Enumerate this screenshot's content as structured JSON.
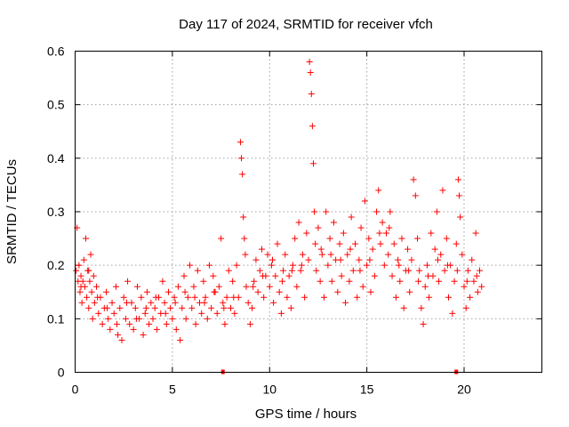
{
  "chart_data": {
    "type": "scatter",
    "title": "Day 117 of 2024, SRMTID for receiver vfch",
    "xlabel": "GPS time / hours",
    "ylabel": "SRMTID / TECUs",
    "xlim": [
      0,
      24
    ],
    "ylim": [
      0,
      0.6
    ],
    "xticks": [
      0,
      5,
      10,
      15,
      20
    ],
    "yticks": [
      0,
      0.1,
      0.2,
      0.3,
      0.4,
      0.5,
      0.6
    ],
    "xtick_labels": [
      "0",
      "5",
      "10",
      "15",
      "20"
    ],
    "ytick_labels": [
      "0",
      "0.1",
      "0.2",
      "0.3",
      "0.4",
      "0.5",
      "0.6"
    ],
    "grid": true,
    "marker": "+",
    "color": "#ff0000",
    "series": [
      {
        "name": "SRMTID",
        "points": [
          [
            0.05,
            0.19
          ],
          [
            0.1,
            0.27
          ],
          [
            0.15,
            0.17
          ],
          [
            0.2,
            0.2
          ],
          [
            0.25,
            0.15
          ],
          [
            0.3,
            0.18
          ],
          [
            0.35,
            0.13
          ],
          [
            0.4,
            0.17
          ],
          [
            0.45,
            0.21
          ],
          [
            0.5,
            0.16
          ],
          [
            0.55,
            0.25
          ],
          [
            0.6,
            0.14
          ],
          [
            0.65,
            0.19
          ],
          [
            0.7,
            0.12
          ],
          [
            0.75,
            0.17
          ],
          [
            0.8,
            0.22
          ],
          [
            0.85,
            0.15
          ],
          [
            0.9,
            0.1
          ],
          [
            0.95,
            0.18
          ],
          [
            1.0,
            0.13
          ],
          [
            1.1,
            0.16
          ],
          [
            1.2,
            0.11
          ],
          [
            1.3,
            0.14
          ],
          [
            1.4,
            0.09
          ],
          [
            1.5,
            0.12
          ],
          [
            1.6,
            0.15
          ],
          [
            1.7,
            0.1
          ],
          [
            1.8,
            0.08
          ],
          [
            1.9,
            0.13
          ],
          [
            2.0,
            0.11
          ],
          [
            2.1,
            0.16
          ],
          [
            2.2,
            0.07
          ],
          [
            2.3,
            0.12
          ],
          [
            2.4,
            0.06
          ],
          [
            2.5,
            0.14
          ],
          [
            2.6,
            0.1
          ],
          [
            2.7,
            0.17
          ],
          [
            2.8,
            0.09
          ],
          [
            2.9,
            0.13
          ],
          [
            3.0,
            0.08
          ],
          [
            3.1,
            0.12
          ],
          [
            3.2,
            0.16
          ],
          [
            3.3,
            0.1
          ],
          [
            3.4,
            0.14
          ],
          [
            3.5,
            0.07
          ],
          [
            3.6,
            0.11
          ],
          [
            3.7,
            0.15
          ],
          [
            3.8,
            0.09
          ],
          [
            3.9,
            0.13
          ],
          [
            4.0,
            0.1
          ],
          [
            4.1,
            0.12
          ],
          [
            4.2,
            0.08
          ],
          [
            4.3,
            0.14
          ],
          [
            4.4,
            0.11
          ],
          [
            4.5,
            0.17
          ],
          [
            4.6,
            0.13
          ],
          [
            4.7,
            0.09
          ],
          [
            4.8,
            0.15
          ],
          [
            4.9,
            0.12
          ],
          [
            5.0,
            0.1
          ],
          [
            5.1,
            0.14
          ],
          [
            5.2,
            0.08
          ],
          [
            5.3,
            0.16
          ],
          [
            5.4,
            0.06
          ],
          [
            5.5,
            0.12
          ],
          [
            5.6,
            0.18
          ],
          [
            5.7,
            0.1
          ],
          [
            5.8,
            0.14
          ],
          [
            5.9,
            0.2
          ],
          [
            6.0,
            0.12
          ],
          [
            6.1,
            0.16
          ],
          [
            6.2,
            0.09
          ],
          [
            6.3,
            0.19
          ],
          [
            6.4,
            0.13
          ],
          [
            6.5,
            0.11
          ],
          [
            6.6,
            0.17
          ],
          [
            6.7,
            0.14
          ],
          [
            6.8,
            0.1
          ],
          [
            6.9,
            0.2
          ],
          [
            7.0,
            0.12
          ],
          [
            7.1,
            0.18
          ],
          [
            7.2,
            0.15
          ],
          [
            7.3,
            0.11
          ],
          [
            7.4,
            0.16
          ],
          [
            7.5,
            0.25
          ],
          [
            7.6,
            0.13
          ],
          [
            7.7,
            0.09
          ],
          [
            7.8,
            0.14
          ],
          [
            7.9,
            0.19
          ],
          [
            8.0,
            0.12
          ],
          [
            8.1,
            0.17
          ],
          [
            8.2,
            0.11
          ],
          [
            8.3,
            0.2
          ],
          [
            8.4,
            0.14
          ],
          [
            8.5,
            0.43
          ],
          [
            8.55,
            0.4
          ],
          [
            8.6,
            0.37
          ],
          [
            8.65,
            0.29
          ],
          [
            8.7,
            0.25
          ],
          [
            8.75,
            0.22
          ],
          [
            8.8,
            0.16
          ],
          [
            8.9,
            0.13
          ],
          [
            9.0,
            0.09
          ],
          [
            9.1,
            0.12
          ],
          [
            9.2,
            0.17
          ],
          [
            9.3,
            0.21
          ],
          [
            9.4,
            0.15
          ],
          [
            9.5,
            0.19
          ],
          [
            9.6,
            0.23
          ],
          [
            9.7,
            0.14
          ],
          [
            9.8,
            0.18
          ],
          [
            9.9,
            0.22
          ],
          [
            10.0,
            0.16
          ],
          [
            10.1,
            0.2
          ],
          [
            10.2,
            0.13
          ],
          [
            10.3,
            0.18
          ],
          [
            10.4,
            0.24
          ],
          [
            10.5,
            0.15
          ],
          [
            10.6,
            0.11
          ],
          [
            10.7,
            0.19
          ],
          [
            10.8,
            0.22
          ],
          [
            10.9,
            0.14
          ],
          [
            11.0,
            0.18
          ],
          [
            11.1,
            0.12
          ],
          [
            11.2,
            0.2
          ],
          [
            11.3,
            0.25
          ],
          [
            11.4,
            0.16
          ],
          [
            11.5,
            0.28
          ],
          [
            11.6,
            0.19
          ],
          [
            11.7,
            0.22
          ],
          [
            11.8,
            0.14
          ],
          [
            11.9,
            0.26
          ],
          [
            12.0,
            0.21
          ],
          [
            12.05,
            0.58
          ],
          [
            12.1,
            0.56
          ],
          [
            12.15,
            0.52
          ],
          [
            12.2,
            0.46
          ],
          [
            12.25,
            0.39
          ],
          [
            12.3,
            0.3
          ],
          [
            12.35,
            0.24
          ],
          [
            12.4,
            0.19
          ],
          [
            12.5,
            0.27
          ],
          [
            12.6,
            0.17
          ],
          [
            12.7,
            0.22
          ],
          [
            12.8,
            0.14
          ],
          [
            12.9,
            0.3
          ],
          [
            13.0,
            0.2
          ],
          [
            13.1,
            0.25
          ],
          [
            13.2,
            0.17
          ],
          [
            13.3,
            0.28
          ],
          [
            13.4,
            0.21
          ],
          [
            13.5,
            0.15
          ],
          [
            13.6,
            0.24
          ],
          [
            13.7,
            0.18
          ],
          [
            13.8,
            0.26
          ],
          [
            13.9,
            0.13
          ],
          [
            14.0,
            0.22
          ],
          [
            14.1,
            0.17
          ],
          [
            14.2,
            0.29
          ],
          [
            14.3,
            0.19
          ],
          [
            14.4,
            0.24
          ],
          [
            14.5,
            0.14
          ],
          [
            14.6,
            0.21
          ],
          [
            14.7,
            0.27
          ],
          [
            14.8,
            0.16
          ],
          [
            14.9,
            0.32
          ],
          [
            15.0,
            0.2
          ],
          [
            15.1,
            0.25
          ],
          [
            15.2,
            0.15
          ],
          [
            15.3,
            0.23
          ],
          [
            15.4,
            0.18
          ],
          [
            15.5,
            0.3
          ],
          [
            15.6,
            0.34
          ],
          [
            15.7,
            0.24
          ],
          [
            15.8,
            0.28
          ],
          [
            15.9,
            0.2
          ],
          [
            16.0,
            0.26
          ],
          [
            16.1,
            0.22
          ],
          [
            16.2,
            0.3
          ],
          [
            16.3,
            0.18
          ],
          [
            16.4,
            0.24
          ],
          [
            16.5,
            0.14
          ],
          [
            16.6,
            0.21
          ],
          [
            16.7,
            0.17
          ],
          [
            16.8,
            0.25
          ],
          [
            16.9,
            0.12
          ],
          [
            17.0,
            0.19
          ],
          [
            17.1,
            0.23
          ],
          [
            17.2,
            0.15
          ],
          [
            17.3,
            0.21
          ],
          [
            17.4,
            0.36
          ],
          [
            17.5,
            0.33
          ],
          [
            17.6,
            0.25
          ],
          [
            17.7,
            0.19
          ],
          [
            17.8,
            0.12
          ],
          [
            17.9,
            0.09
          ],
          [
            18.0,
            0.16
          ],
          [
            18.1,
            0.2
          ],
          [
            18.2,
            0.14
          ],
          [
            18.3,
            0.26
          ],
          [
            18.4,
            0.18
          ],
          [
            18.5,
            0.23
          ],
          [
            18.6,
            0.3
          ],
          [
            18.7,
            0.17
          ],
          [
            18.8,
            0.22
          ],
          [
            18.9,
            0.34
          ],
          [
            19.0,
            0.19
          ],
          [
            19.1,
            0.25
          ],
          [
            19.2,
            0.14
          ],
          [
            19.3,
            0.2
          ],
          [
            19.4,
            0.11
          ],
          [
            19.5,
            0.17
          ],
          [
            19.6,
            0.24
          ],
          [
            19.7,
            0.36
          ],
          [
            19.75,
            0.33
          ],
          [
            19.8,
            0.29
          ],
          [
            19.9,
            0.22
          ],
          [
            20.0,
            0.16
          ],
          [
            20.1,
            0.12
          ],
          [
            20.2,
            0.19
          ],
          [
            20.3,
            0.14
          ],
          [
            20.4,
            0.21
          ],
          [
            20.5,
            0.17
          ],
          [
            20.6,
            0.26
          ],
          [
            20.7,
            0.15
          ],
          [
            20.8,
            0.19
          ],
          [
            20.9,
            0.16
          ],
          [
            0.3,
            0.16
          ],
          [
            0.7,
            0.19
          ],
          [
            1.15,
            0.14
          ],
          [
            1.65,
            0.12
          ],
          [
            2.15,
            0.09
          ],
          [
            2.65,
            0.13
          ],
          [
            3.15,
            0.1
          ],
          [
            3.65,
            0.12
          ],
          [
            4.15,
            0.14
          ],
          [
            4.65,
            0.11
          ],
          [
            5.15,
            0.13
          ],
          [
            5.65,
            0.15
          ],
          [
            6.15,
            0.14
          ],
          [
            6.65,
            0.13
          ],
          [
            7.15,
            0.15
          ],
          [
            7.65,
            0.12
          ],
          [
            8.15,
            0.14
          ],
          [
            9.15,
            0.16
          ],
          [
            9.65,
            0.18
          ],
          [
            10.15,
            0.21
          ],
          [
            10.65,
            0.17
          ],
          [
            11.15,
            0.19
          ],
          [
            11.65,
            0.2
          ],
          [
            12.65,
            0.23
          ],
          [
            13.15,
            0.22
          ],
          [
            13.65,
            0.21
          ],
          [
            14.15,
            0.23
          ],
          [
            14.65,
            0.19
          ],
          [
            15.15,
            0.21
          ],
          [
            15.65,
            0.26
          ],
          [
            16.15,
            0.27
          ],
          [
            16.65,
            0.2
          ],
          [
            17.15,
            0.19
          ],
          [
            17.65,
            0.17
          ],
          [
            18.15,
            0.18
          ],
          [
            18.65,
            0.21
          ],
          [
            19.15,
            0.2
          ],
          [
            19.65,
            0.19
          ],
          [
            20.15,
            0.17
          ],
          [
            20.65,
            0.18
          ]
        ]
      }
    ],
    "markers_on_axis": [
      7.6,
      19.6
    ]
  }
}
